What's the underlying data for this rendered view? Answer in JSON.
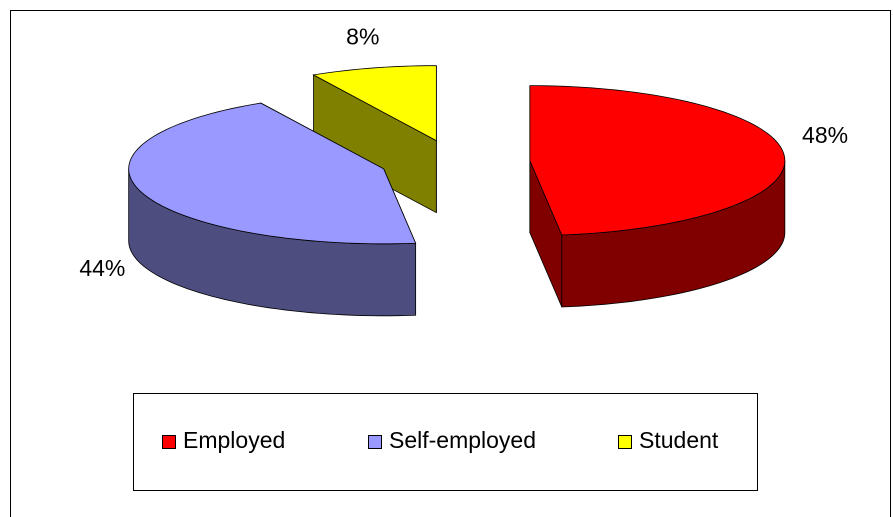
{
  "chart_data": {
    "type": "pie",
    "categories": [
      "Employed",
      "Self-employed",
      "Student"
    ],
    "values": [
      48,
      44,
      8
    ],
    "value_labels": [
      "48%",
      "44%",
      "8%"
    ],
    "colors": [
      "#ff0000",
      "#9999ff",
      "#ffff00"
    ],
    "legend": "bottom"
  }
}
